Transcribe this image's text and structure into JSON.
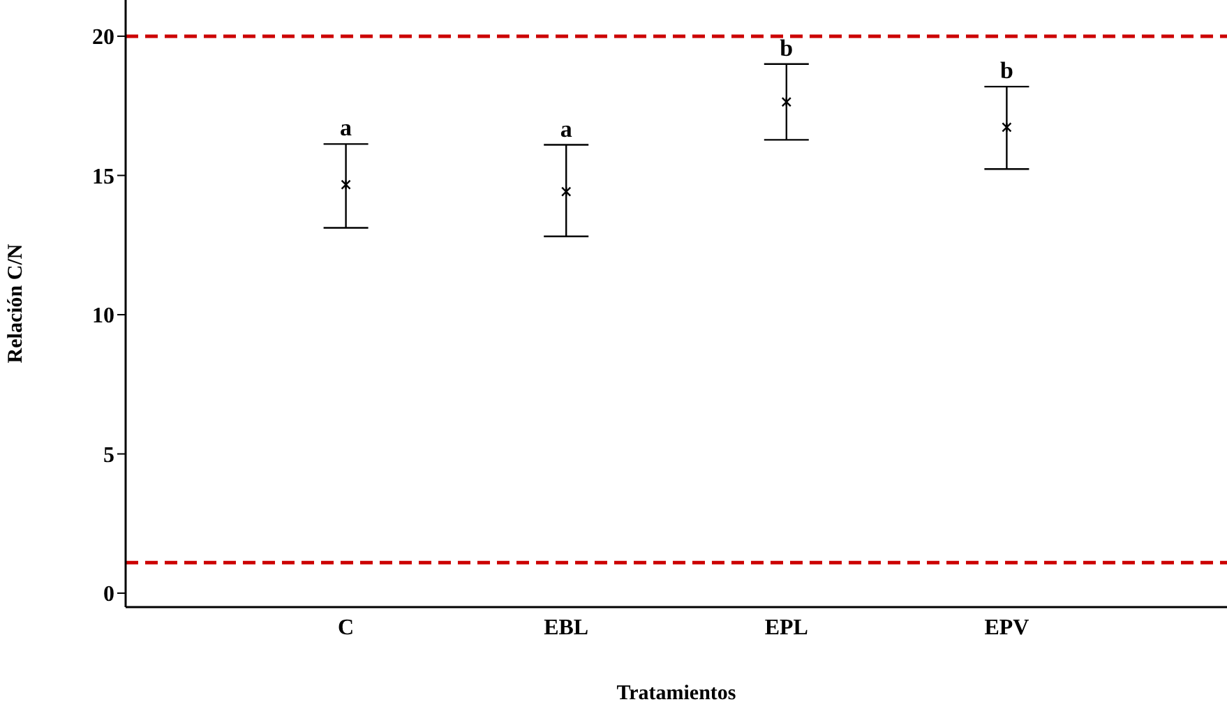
{
  "chart_data": {
    "type": "scatter",
    "xlabel": "Tratamientos",
    "ylabel": "Relación C/N",
    "categories": [
      "C",
      "EBL",
      "EPL",
      "EPV"
    ],
    "values": [
      14.67,
      14.42,
      17.64,
      16.73
    ],
    "errors": [
      [
        13.12,
        16.13
      ],
      [
        12.81,
        16.1
      ],
      [
        16.28,
        19.0
      ],
      [
        15.23,
        18.19
      ]
    ],
    "color": "#000000",
    "marker": "cross",
    "ylim": [
      -0.5,
      21.3
    ],
    "yticks": [
      0,
      5,
      10,
      15,
      20
    ],
    "grid": false,
    "ref_lines": [
      {
        "axis": "y",
        "value": 20,
        "color": "#cc0000",
        "line_style": "dashed"
      },
      {
        "axis": "y",
        "value": 1.1,
        "color": "#cc0000",
        "line_style": "dashed"
      }
    ],
    "annotations": [
      "a",
      "a",
      "b",
      "b"
    ]
  }
}
